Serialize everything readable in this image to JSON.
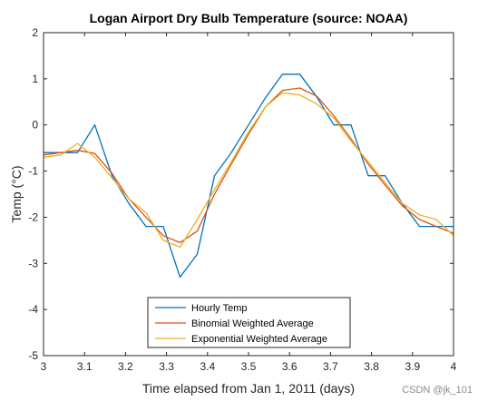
{
  "chart_data": {
    "type": "line",
    "title": "Logan Airport Dry Bulb Temperature (source: NOAA)",
    "xlabel": "Time elapsed from Jan 1, 2011 (days)",
    "ylabel": "Temp (°C)",
    "xlim": [
      3,
      4
    ],
    "ylim": [
      -5,
      2
    ],
    "xticks": [
      "3",
      "3.1",
      "3.2",
      "3.3",
      "3.4",
      "3.5",
      "3.6",
      "3.7",
      "3.8",
      "3.9",
      "4"
    ],
    "yticks": [
      "-5",
      "-4",
      "-3",
      "-2",
      "-1",
      "0",
      "1",
      "2"
    ],
    "grid": false,
    "legend_position": "bottom-center",
    "series": [
      {
        "name": "Hourly Temp",
        "color": "#0072BD",
        "x": [
          3.0,
          3.042,
          3.083,
          3.125,
          3.167,
          3.208,
          3.25,
          3.292,
          3.333,
          3.375,
          3.417,
          3.458,
          3.5,
          3.542,
          3.583,
          3.625,
          3.667,
          3.708,
          3.75,
          3.792,
          3.833,
          3.875,
          3.917,
          3.958,
          4.0
        ],
        "y": [
          -0.6,
          -0.6,
          -0.6,
          0.0,
          -1.1,
          -1.7,
          -2.2,
          -2.2,
          -3.3,
          -2.8,
          -1.1,
          -0.6,
          0.0,
          0.6,
          1.1,
          1.1,
          0.6,
          0.0,
          0.0,
          -1.1,
          -1.1,
          -1.7,
          -2.2,
          -2.2,
          -2.2
        ]
      },
      {
        "name": "Binomial Weighted Average",
        "color": "#D95319",
        "x": [
          3.0,
          3.042,
          3.083,
          3.125,
          3.167,
          3.208,
          3.25,
          3.292,
          3.333,
          3.375,
          3.417,
          3.458,
          3.5,
          3.542,
          3.583,
          3.625,
          3.667,
          3.708,
          3.75,
          3.792,
          3.833,
          3.875,
          3.917,
          3.958,
          4.0
        ],
        "y": [
          -0.65,
          -0.6,
          -0.55,
          -0.62,
          -1.05,
          -1.6,
          -2.0,
          -2.4,
          -2.55,
          -2.3,
          -1.5,
          -0.85,
          -0.2,
          0.4,
          0.75,
          0.8,
          0.62,
          0.2,
          -0.3,
          -0.85,
          -1.3,
          -1.75,
          -2.05,
          -2.2,
          -2.35
        ]
      },
      {
        "name": "Exponential Weighted Average",
        "color": "#EDB120",
        "x": [
          3.0,
          3.042,
          3.083,
          3.125,
          3.167,
          3.208,
          3.25,
          3.292,
          3.333,
          3.375,
          3.417,
          3.458,
          3.5,
          3.542,
          3.583,
          3.625,
          3.667,
          3.708,
          3.75,
          3.792,
          3.833,
          3.875,
          3.917,
          3.958,
          4.0
        ],
        "y": [
          -0.7,
          -0.65,
          -0.4,
          -0.7,
          -1.15,
          -1.6,
          -1.9,
          -2.5,
          -2.65,
          -2.05,
          -1.4,
          -0.8,
          -0.15,
          0.4,
          0.7,
          0.65,
          0.45,
          0.15,
          -0.35,
          -0.8,
          -1.25,
          -1.7,
          -1.95,
          -2.05,
          -2.4
        ]
      }
    ]
  },
  "watermark": "CSDN @jk_101"
}
